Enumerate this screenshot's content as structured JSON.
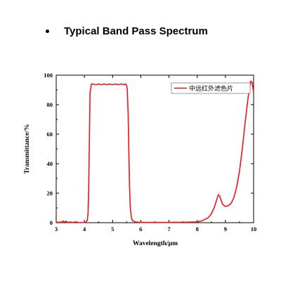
{
  "heading": {
    "text": "Typical Band Pass Spectrum"
  },
  "chart_data": {
    "type": "line",
    "title": "",
    "xlabel": "Wavelength/μm",
    "ylabel": "Transmittance/%",
    "xlim": [
      3,
      10
    ],
    "ylim": [
      0,
      100
    ],
    "xticks": [
      3,
      4,
      5,
      6,
      7,
      8,
      9,
      10
    ],
    "yticks": [
      0,
      20,
      40,
      60,
      80,
      100
    ],
    "grid": false,
    "legend_position": "top-right",
    "series": [
      {
        "name": "中远红外滤色片",
        "color": "#e8141a",
        "x": [
          3.0,
          3.2,
          3.25,
          3.3,
          3.35,
          3.4,
          3.5,
          3.6,
          3.7,
          3.8,
          3.9,
          4.0,
          4.05,
          4.1,
          4.13,
          4.15,
          4.18,
          4.2,
          4.25,
          4.3,
          4.4,
          4.5,
          4.6,
          4.7,
          4.8,
          4.9,
          5.0,
          5.1,
          5.2,
          5.3,
          5.4,
          5.45,
          5.5,
          5.52,
          5.55,
          5.58,
          5.6,
          5.63,
          5.66,
          5.7,
          5.8,
          6.0,
          6.5,
          7.0,
          7.5,
          8.0,
          8.2,
          8.4,
          8.5,
          8.6,
          8.7,
          8.75,
          8.8,
          8.85,
          8.9,
          9.0,
          9.1,
          9.2,
          9.3,
          9.4,
          9.5,
          9.6,
          9.7,
          9.8,
          9.85,
          9.9,
          9.95,
          10.0
        ],
        "y": [
          0.3,
          0.4,
          1.2,
          0.3,
          1.0,
          0.2,
          0.3,
          0.2,
          0.5,
          0.1,
          0.1,
          0.2,
          0.4,
          1.5,
          6,
          20,
          60,
          88,
          94,
          94,
          93.5,
          94,
          93.5,
          94,
          93.5,
          94,
          93.5,
          94,
          93.5,
          94,
          93.5,
          94,
          93,
          90,
          75,
          45,
          25,
          10,
          4,
          1.5,
          0.5,
          0.2,
          0.2,
          0.2,
          0.3,
          0.5,
          1.5,
          3.5,
          6,
          10,
          16,
          19,
          18,
          15,
          12.5,
          11,
          11.5,
          13,
          17,
          24,
          35,
          50,
          68,
          84,
          91,
          96,
          95,
          88
        ]
      }
    ]
  }
}
